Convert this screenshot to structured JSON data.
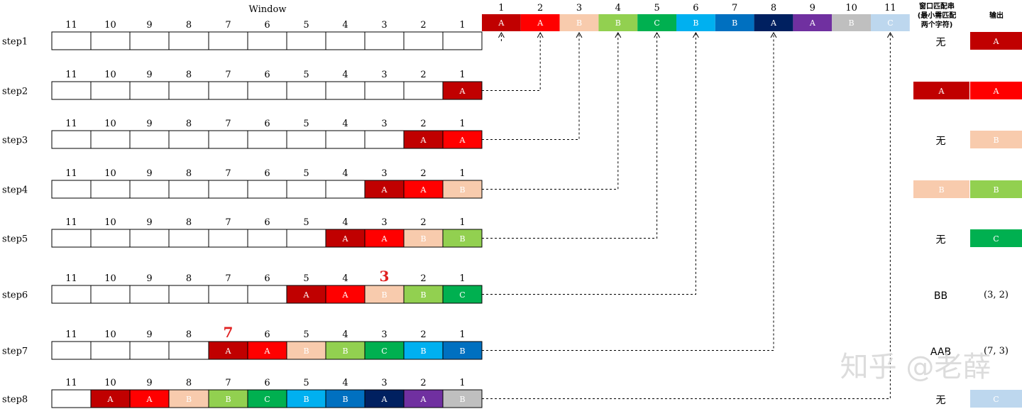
{
  "window_title": "Window",
  "col_numbers": [
    "11",
    "10",
    "9",
    "8",
    "7",
    "6",
    "5",
    "4",
    "3",
    "2",
    "1"
  ],
  "input_numbers": [
    "1",
    "2",
    "3",
    "4",
    "5",
    "6",
    "7",
    "8",
    "9",
    "10",
    "11"
  ],
  "input_sequence": [
    "A",
    "A",
    "B",
    "B",
    "C",
    "B",
    "B",
    "A",
    "A",
    "B",
    "C"
  ],
  "colors": {
    "A_dark": "#c00000",
    "A_red": "#ff0000",
    "B_peach": "#f8cbad",
    "B_green": "#92d050",
    "C_green": "#00b050",
    "B_sky": "#00b0f0",
    "B_blue": "#0070c0",
    "A_navy": "#002060",
    "A_purple": "#7030a0",
    "B_gray": "#bfbfbf",
    "C_light": "#bdd7ee"
  },
  "match_header": "窗口匹配串(最小需匹配两个字符)",
  "output_header": "输出",
  "steps": [
    {
      "label": "step1",
      "window": [],
      "match": {
        "text": "无"
      },
      "output": {
        "text": "A",
        "color": "A_dark"
      }
    },
    {
      "label": "step2",
      "window": [
        {
          "text": "A",
          "color": "A_dark"
        }
      ],
      "match": {
        "text": "A",
        "color": "A_dark"
      },
      "output": {
        "text": "A",
        "color": "A_red"
      }
    },
    {
      "label": "step3",
      "window": [
        {
          "text": "A",
          "color": "A_dark"
        },
        {
          "text": "A",
          "color": "A_red"
        }
      ],
      "match": {
        "text": "无"
      },
      "output": {
        "text": "B",
        "color": "B_peach"
      }
    },
    {
      "label": "step4",
      "window": [
        {
          "text": "A",
          "color": "A_dark"
        },
        {
          "text": "A",
          "color": "A_red"
        },
        {
          "text": "B",
          "color": "B_peach"
        }
      ],
      "match": {
        "text": "B",
        "color": "B_peach"
      },
      "output": {
        "text": "B",
        "color": "B_green"
      }
    },
    {
      "label": "step5",
      "window": [
        {
          "text": "A",
          "color": "A_dark"
        },
        {
          "text": "A",
          "color": "A_red"
        },
        {
          "text": "B",
          "color": "B_peach"
        },
        {
          "text": "B",
          "color": "B_green"
        }
      ],
      "match": {
        "text": "无"
      },
      "output": {
        "text": "C",
        "color": "C_green"
      }
    },
    {
      "label": "step6",
      "highlight": {
        "col": "3",
        "text": "3"
      },
      "window": [
        {
          "text": "A",
          "color": "A_dark"
        },
        {
          "text": "A",
          "color": "A_red"
        },
        {
          "text": "B",
          "color": "B_peach"
        },
        {
          "text": "B",
          "color": "B_green"
        },
        {
          "text": "C",
          "color": "C_green"
        }
      ],
      "match": {
        "text": "BB"
      },
      "output": {
        "text": "(3, 2)"
      }
    },
    {
      "label": "step7",
      "highlight": {
        "col": "7",
        "text": "7"
      },
      "window": [
        {
          "text": "A",
          "color": "A_dark"
        },
        {
          "text": "A",
          "color": "A_red"
        },
        {
          "text": "B",
          "color": "B_peach"
        },
        {
          "text": "B",
          "color": "B_green"
        },
        {
          "text": "C",
          "color": "C_green"
        },
        {
          "text": "B",
          "color": "B_sky"
        },
        {
          "text": "B",
          "color": "B_blue"
        }
      ],
      "match": {
        "text": "AAB"
      },
      "output": {
        "text": "(7, 3)"
      }
    },
    {
      "label": "step8",
      "window": [
        {
          "text": "A",
          "color": "A_dark"
        },
        {
          "text": "A",
          "color": "A_red"
        },
        {
          "text": "B",
          "color": "B_peach"
        },
        {
          "text": "B",
          "color": "B_green"
        },
        {
          "text": "C",
          "color": "C_green"
        },
        {
          "text": "B",
          "color": "B_sky"
        },
        {
          "text": "B",
          "color": "B_blue"
        },
        {
          "text": "A",
          "color": "A_navy"
        },
        {
          "text": "A",
          "color": "A_purple"
        },
        {
          "text": "B",
          "color": "B_gray"
        }
      ],
      "match": {
        "text": "无"
      },
      "output": {
        "text": "C",
        "color": "C_light"
      }
    }
  ],
  "watermark": "知乎 @老薛"
}
